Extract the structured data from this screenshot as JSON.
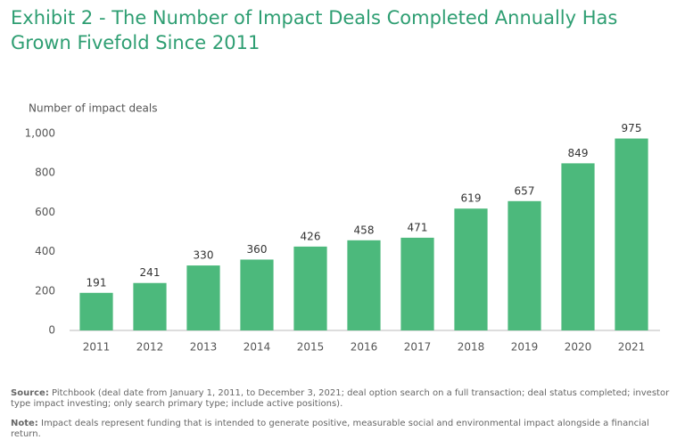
{
  "chart_data": {
    "type": "bar",
    "title": "Exhibit 2 - The Number of Impact Deals Completed Annually Has Grown Fivefold Since 2011",
    "y_axis_label": "Number of impact deals",
    "categories": [
      "2011",
      "2012",
      "2013",
      "2014",
      "2015",
      "2016",
      "2017",
      "2018",
      "2019",
      "2020",
      "2021"
    ],
    "values": [
      191,
      241,
      330,
      360,
      426,
      458,
      471,
      619,
      657,
      849,
      975
    ],
    "color": "#4cb97c",
    "ylim": [
      0,
      1000
    ],
    "yticks": [
      0,
      200,
      400,
      600,
      800,
      {
        "value": 1000,
        "label": "1,000"
      }
    ],
    "grid": false
  },
  "footnotes": {
    "source": {
      "label": "Source:",
      "text": "Pitchbook (deal date from January 1, 2011, to December 3, 2021; deal option search on a full transaction; deal status completed; investor type impact investing; only search primary type; include active positions)."
    },
    "note": {
      "label": "Note:",
      "text": "Impact deals represent funding that is intended to generate positive, measurable social and environmental impact alongside a financial return."
    }
  }
}
